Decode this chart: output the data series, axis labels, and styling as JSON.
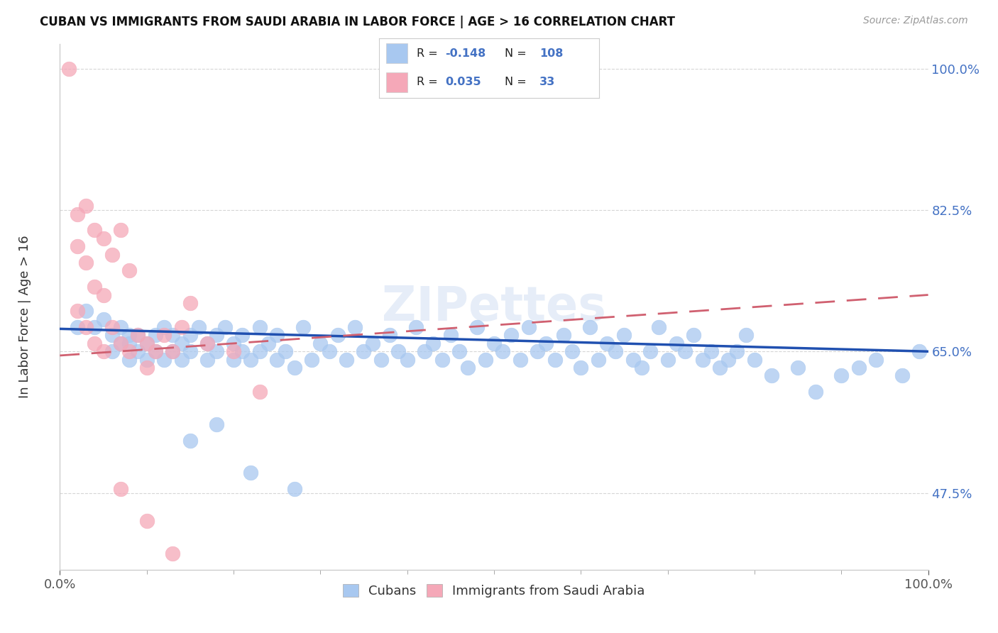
{
  "title": "CUBAN VS IMMIGRANTS FROM SAUDI ARABIA IN LABOR FORCE | AGE > 16 CORRELATION CHART",
  "source": "Source: ZipAtlas.com",
  "ylabel": "In Labor Force | Age > 16",
  "xmin": 0.0,
  "xmax": 1.0,
  "ymin": 0.38,
  "ymax": 1.03,
  "yticks": [
    0.475,
    0.65,
    0.825,
    1.0
  ],
  "ytick_labels": [
    "47.5%",
    "65.0%",
    "82.5%",
    "100.0%"
  ],
  "legend_r_blue": "-0.148",
  "legend_n_blue": "108",
  "legend_r_pink": "0.035",
  "legend_n_pink": "33",
  "blue_color": "#a8c8f0",
  "pink_color": "#f5a8b8",
  "blue_line_color": "#2050b0",
  "pink_line_color": "#d06070",
  "watermark": "ZIPettes",
  "background_color": "#ffffff",
  "grid_color": "#cccccc",
  "blue_trend_x": [
    0.0,
    1.0
  ],
  "blue_trend_y": [
    0.678,
    0.65
  ],
  "pink_trend_x": [
    0.0,
    1.0
  ],
  "pink_trend_y": [
    0.645,
    0.72
  ],
  "blue_x": [
    0.02,
    0.03,
    0.04,
    0.05,
    0.06,
    0.06,
    0.07,
    0.07,
    0.08,
    0.08,
    0.08,
    0.09,
    0.09,
    0.1,
    0.1,
    0.11,
    0.11,
    0.12,
    0.12,
    0.13,
    0.13,
    0.14,
    0.14,
    0.15,
    0.15,
    0.16,
    0.17,
    0.17,
    0.18,
    0.18,
    0.19,
    0.2,
    0.2,
    0.21,
    0.21,
    0.22,
    0.23,
    0.23,
    0.24,
    0.25,
    0.25,
    0.26,
    0.27,
    0.28,
    0.29,
    0.3,
    0.31,
    0.32,
    0.33,
    0.34,
    0.35,
    0.36,
    0.37,
    0.38,
    0.39,
    0.4,
    0.41,
    0.42,
    0.43,
    0.44,
    0.45,
    0.46,
    0.47,
    0.48,
    0.49,
    0.5,
    0.51,
    0.52,
    0.53,
    0.54,
    0.55,
    0.56,
    0.57,
    0.58,
    0.59,
    0.6,
    0.61,
    0.62,
    0.63,
    0.64,
    0.65,
    0.66,
    0.67,
    0.68,
    0.69,
    0.7,
    0.71,
    0.72,
    0.73,
    0.74,
    0.75,
    0.76,
    0.77,
    0.78,
    0.79,
    0.8,
    0.82,
    0.85,
    0.87,
    0.9,
    0.92,
    0.94,
    0.97,
    0.99,
    0.15,
    0.18,
    0.22,
    0.27
  ],
  "blue_y": [
    0.68,
    0.7,
    0.68,
    0.69,
    0.65,
    0.67,
    0.66,
    0.68,
    0.64,
    0.66,
    0.67,
    0.65,
    0.67,
    0.64,
    0.66,
    0.65,
    0.67,
    0.64,
    0.68,
    0.65,
    0.67,
    0.64,
    0.66,
    0.65,
    0.67,
    0.68,
    0.64,
    0.66,
    0.65,
    0.67,
    0.68,
    0.64,
    0.66,
    0.65,
    0.67,
    0.64,
    0.68,
    0.65,
    0.66,
    0.64,
    0.67,
    0.65,
    0.63,
    0.68,
    0.64,
    0.66,
    0.65,
    0.67,
    0.64,
    0.68,
    0.65,
    0.66,
    0.64,
    0.67,
    0.65,
    0.64,
    0.68,
    0.65,
    0.66,
    0.64,
    0.67,
    0.65,
    0.63,
    0.68,
    0.64,
    0.66,
    0.65,
    0.67,
    0.64,
    0.68,
    0.65,
    0.66,
    0.64,
    0.67,
    0.65,
    0.63,
    0.68,
    0.64,
    0.66,
    0.65,
    0.67,
    0.64,
    0.63,
    0.65,
    0.68,
    0.64,
    0.66,
    0.65,
    0.67,
    0.64,
    0.65,
    0.63,
    0.64,
    0.65,
    0.67,
    0.64,
    0.62,
    0.63,
    0.6,
    0.62,
    0.63,
    0.64,
    0.62,
    0.65,
    0.54,
    0.56,
    0.5,
    0.48
  ],
  "pink_x": [
    0.01,
    0.02,
    0.02,
    0.02,
    0.03,
    0.03,
    0.03,
    0.04,
    0.04,
    0.04,
    0.05,
    0.05,
    0.05,
    0.06,
    0.06,
    0.07,
    0.07,
    0.08,
    0.08,
    0.09,
    0.1,
    0.1,
    0.11,
    0.12,
    0.13,
    0.14,
    0.15,
    0.17,
    0.2,
    0.23,
    0.07,
    0.1,
    0.13
  ],
  "pink_y": [
    1.0,
    0.82,
    0.78,
    0.7,
    0.83,
    0.76,
    0.68,
    0.8,
    0.73,
    0.66,
    0.79,
    0.72,
    0.65,
    0.77,
    0.68,
    0.8,
    0.66,
    0.75,
    0.65,
    0.67,
    0.66,
    0.63,
    0.65,
    0.67,
    0.65,
    0.68,
    0.71,
    0.66,
    0.65,
    0.6,
    0.48,
    0.44,
    0.4
  ]
}
